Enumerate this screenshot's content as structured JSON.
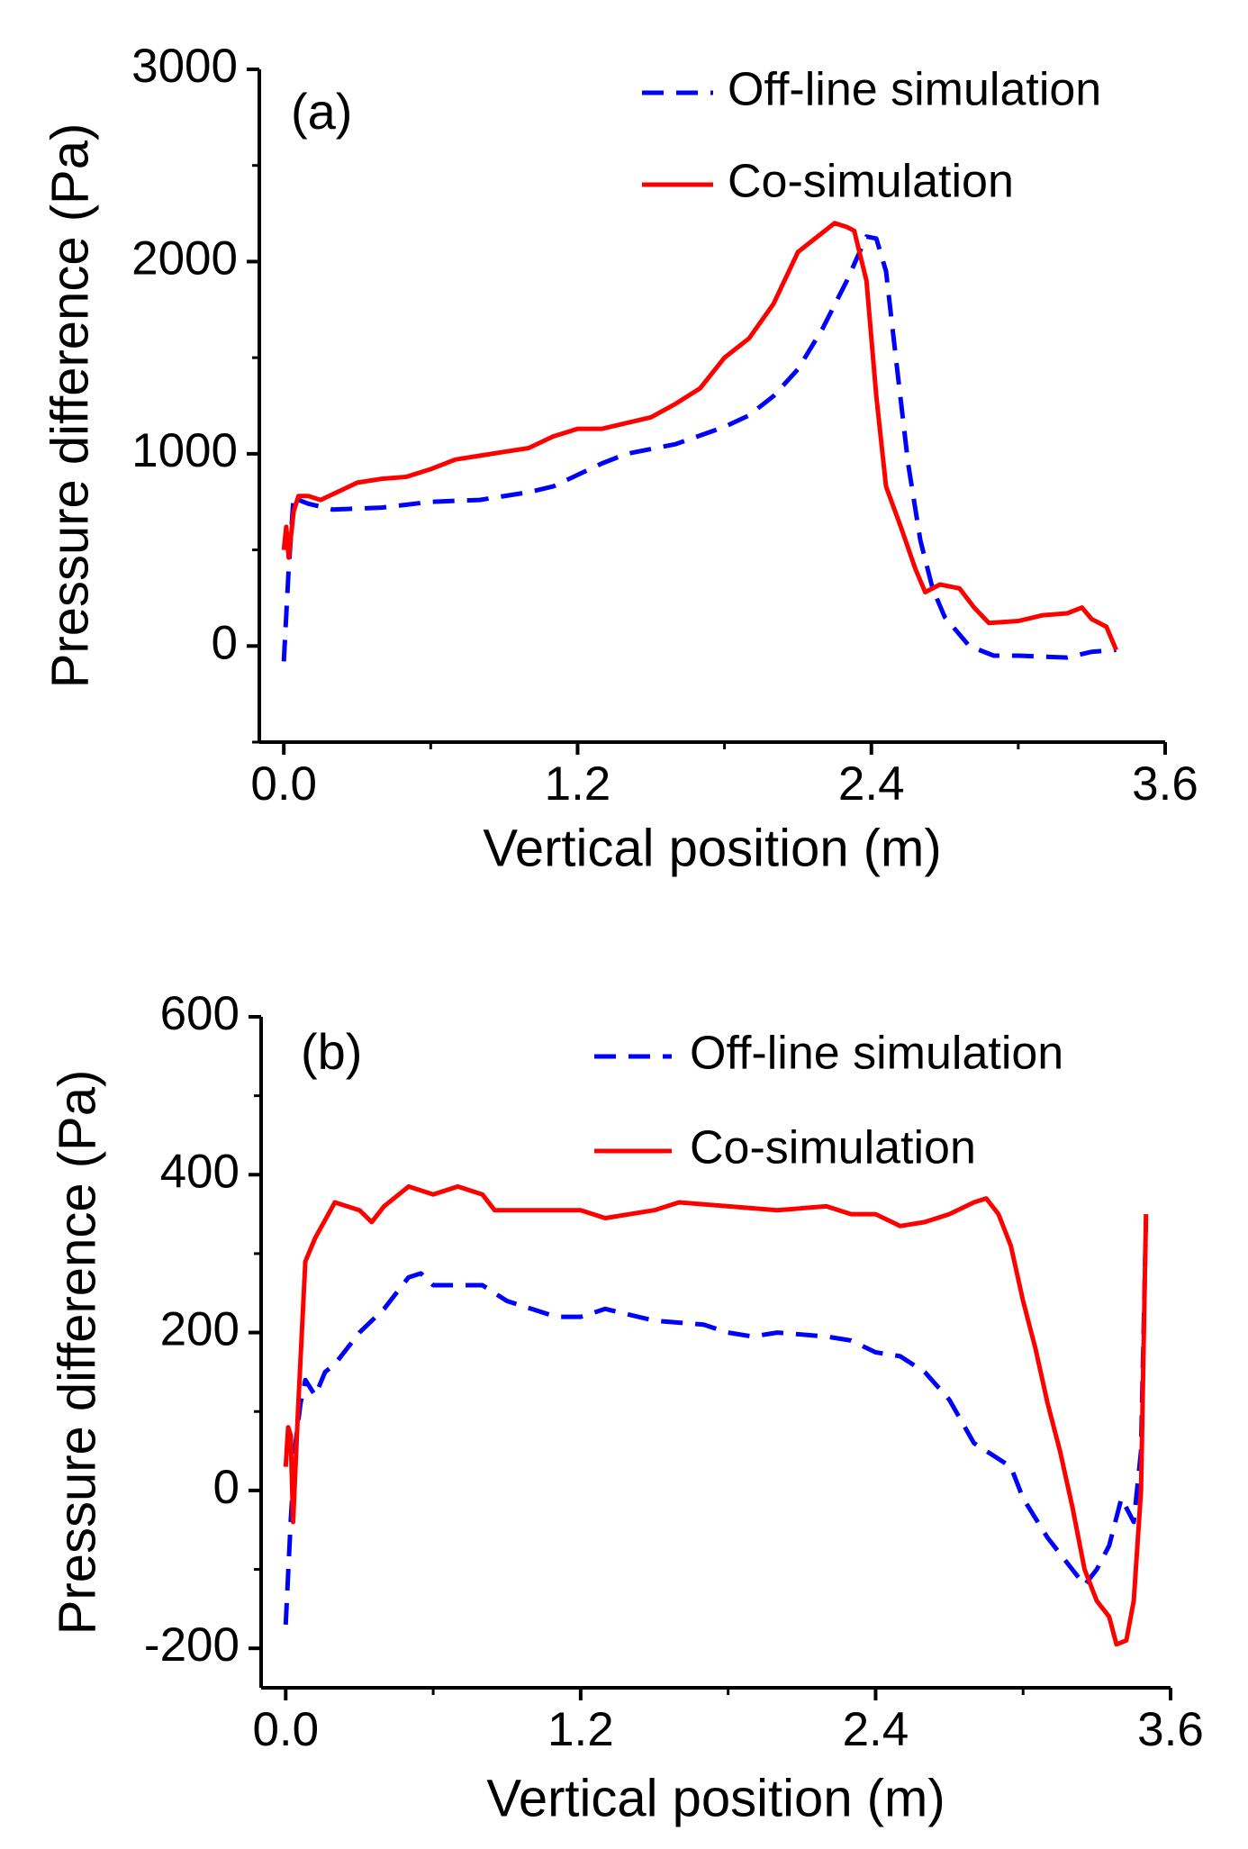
{
  "chart_data": [
    {
      "type": "line",
      "panel_label": "(a)",
      "x_label": "Vertical position (m)",
      "y_label": "Pressure difference (Pa)",
      "xlim": [
        -0.1,
        3.6
      ],
      "ylim": [
        -500,
        3000
      ],
      "xticks": [
        {
          "value": 0,
          "label": "0.0"
        },
        1.2,
        2.4,
        3.6
      ],
      "xminorticks": [
        0.6,
        1.8,
        3.0
      ],
      "yticks": [
        0,
        1000,
        2000,
        3000
      ],
      "yminorticks": [
        -500,
        500,
        1500,
        2500
      ],
      "series": [
        {
          "name": "Off-line simulation",
          "color": "#0000ff",
          "dash": true,
          "x": [
            0,
            0.02,
            0.04,
            0.06,
            0.1,
            0.2,
            0.4,
            0.6,
            0.8,
            1.0,
            1.1,
            1.2,
            1.3,
            1.4,
            1.6,
            1.8,
            1.9,
            2.0,
            2.1,
            2.2,
            2.3,
            2.38,
            2.42,
            2.46,
            2.5,
            2.55,
            2.6,
            2.65,
            2.7,
            2.8,
            2.9,
            3.0,
            3.2,
            3.3,
            3.4
          ],
          "values": [
            -80,
            400,
            780,
            760,
            740,
            710,
            720,
            750,
            760,
            800,
            830,
            890,
            950,
            1000,
            1050,
            1140,
            1200,
            1300,
            1440,
            1650,
            1900,
            2130,
            2120,
            1950,
            1500,
            950,
            550,
            300,
            150,
            0,
            -50,
            -50,
            -60,
            -30,
            -20
          ]
        },
        {
          "name": "Co-simulation",
          "color": "#ff0000",
          "dash": false,
          "x": [
            0,
            0.01,
            0.02,
            0.04,
            0.06,
            0.1,
            0.15,
            0.2,
            0.3,
            0.4,
            0.5,
            0.6,
            0.7,
            0.8,
            0.9,
            1.0,
            1.1,
            1.2,
            1.3,
            1.4,
            1.5,
            1.6,
            1.7,
            1.8,
            1.9,
            2.0,
            2.1,
            2.2,
            2.25,
            2.3,
            2.33,
            2.38,
            2.42,
            2.46,
            2.52,
            2.58,
            2.62,
            2.68,
            2.76,
            2.82,
            2.88,
            3.0,
            3.1,
            3.2,
            3.26,
            3.3,
            3.36,
            3.4
          ],
          "values": [
            500,
            620,
            460,
            700,
            780,
            780,
            760,
            790,
            850,
            870,
            880,
            920,
            970,
            990,
            1010,
            1030,
            1090,
            1130,
            1130,
            1160,
            1190,
            1260,
            1340,
            1500,
            1600,
            1780,
            2050,
            2150,
            2200,
            2180,
            2160,
            1900,
            1300,
            830,
            620,
            400,
            280,
            320,
            300,
            200,
            120,
            130,
            160,
            170,
            200,
            140,
            100,
            -20
          ]
        }
      ]
    },
    {
      "type": "line",
      "panel_label": "(b)",
      "x_label": "Vertical position (m)",
      "y_label": "Pressure difference (Pa)",
      "xlim": [
        -0.1,
        3.6
      ],
      "ylim": [
        -250,
        600
      ],
      "xticks": [
        {
          "value": 0,
          "label": "0.0"
        },
        1.2,
        2.4,
        3.6
      ],
      "xminorticks": [
        0.6,
        1.8,
        3.0
      ],
      "yticks": [
        -200,
        0,
        200,
        400,
        600
      ],
      "yminorticks": [
        -100,
        100,
        300,
        500
      ],
      "series": [
        {
          "name": "Off-line simulation",
          "color": "#0000ff",
          "dash": true,
          "x": [
            0,
            0.02,
            0.04,
            0.06,
            0.08,
            0.12,
            0.16,
            0.2,
            0.3,
            0.4,
            0.5,
            0.55,
            0.6,
            0.8,
            0.9,
            1.0,
            1.1,
            1.2,
            1.3,
            1.5,
            1.7,
            1.8,
            1.9,
            2.0,
            2.2,
            2.3,
            2.4,
            2.5,
            2.6,
            2.7,
            2.8,
            2.9,
            2.95,
            3.0,
            3.1,
            3.2,
            3.25,
            3.3,
            3.35,
            3.4,
            3.45,
            3.48,
            3.5
          ],
          "values": [
            -170,
            -40,
            60,
            110,
            140,
            120,
            150,
            160,
            200,
            230,
            270,
            275,
            260,
            260,
            240,
            230,
            220,
            220,
            230,
            215,
            210,
            200,
            195,
            200,
            195,
            190,
            175,
            170,
            150,
            115,
            60,
            40,
            30,
            -10,
            -60,
            -100,
            -120,
            -100,
            -70,
            -10,
            -40,
            50,
            340
          ]
        },
        {
          "name": "Co-simulation",
          "color": "#ff0000",
          "dash": false,
          "x": [
            0,
            0.01,
            0.02,
            0.03,
            0.05,
            0.08,
            0.12,
            0.2,
            0.25,
            0.3,
            0.35,
            0.4,
            0.5,
            0.6,
            0.7,
            0.8,
            0.85,
            1.0,
            1.2,
            1.3,
            1.5,
            1.6,
            1.8,
            2.0,
            2.2,
            2.3,
            2.4,
            2.5,
            2.6,
            2.7,
            2.8,
            2.85,
            2.9,
            2.95,
            3.0,
            3.05,
            3.1,
            3.15,
            3.2,
            3.25,
            3.3,
            3.35,
            3.38,
            3.42,
            3.45,
            3.48,
            3.5
          ],
          "values": [
            30,
            80,
            70,
            -40,
            100,
            290,
            320,
            365,
            360,
            355,
            340,
            360,
            385,
            375,
            385,
            375,
            355,
            355,
            355,
            345,
            355,
            365,
            360,
            355,
            360,
            350,
            350,
            335,
            340,
            350,
            365,
            370,
            350,
            310,
            240,
            180,
            110,
            50,
            -20,
            -100,
            -140,
            -160,
            -195,
            -190,
            -140,
            0,
            350
          ]
        }
      ]
    }
  ]
}
